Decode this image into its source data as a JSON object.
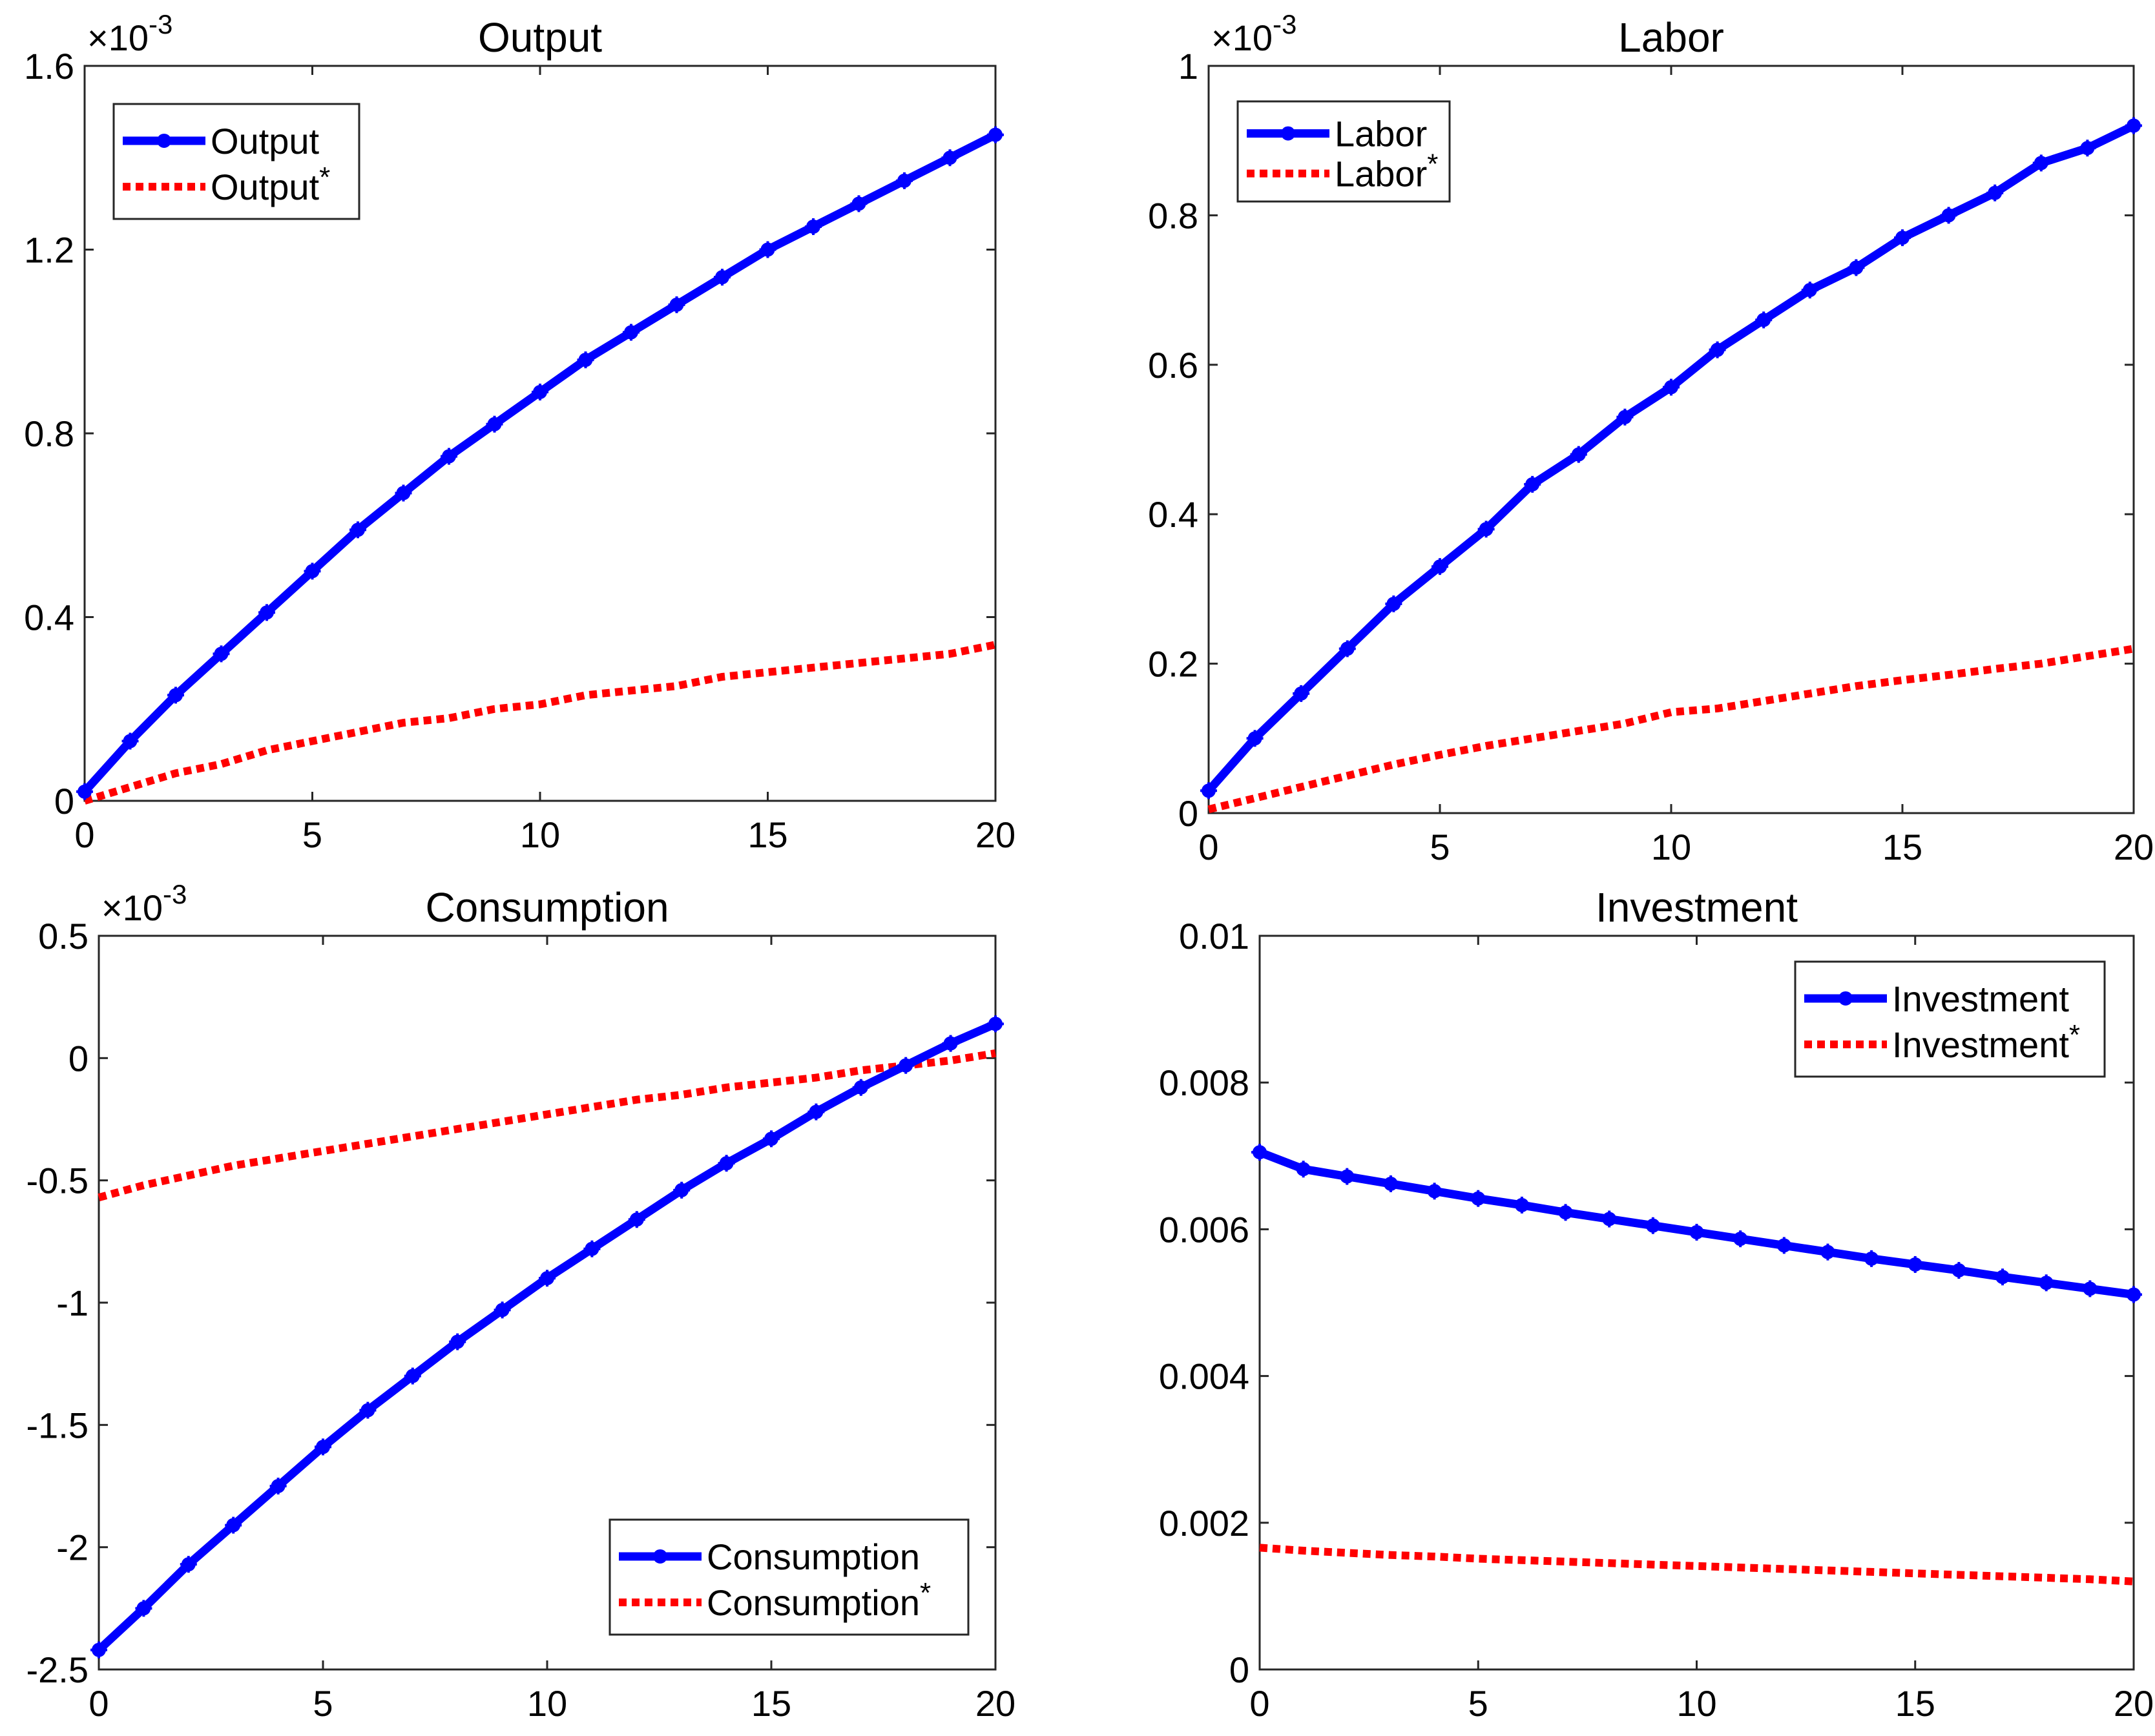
{
  "chart_data": [
    {
      "id": "output",
      "type": "line",
      "title": "Output",
      "xlabel": "",
      "ylabel": "",
      "exponent_label": "×10",
      "exponent_power": "-3",
      "xlim": [
        0,
        20
      ],
      "ylim": [
        0,
        1.6
      ],
      "xticks": [
        0,
        5,
        10,
        15,
        20
      ],
      "xtick_labels": [
        "0",
        "5",
        "10",
        "15",
        "20"
      ],
      "yticks": [
        0,
        0.4,
        0.8,
        1.2,
        1.6
      ],
      "ytick_labels": [
        "0",
        "0.4",
        "0.8",
        "1.2",
        "1.6"
      ],
      "legend_position": "top-left",
      "x": [
        0,
        1,
        2,
        3,
        4,
        5,
        6,
        7,
        8,
        9,
        10,
        11,
        12,
        13,
        14,
        15,
        16,
        17,
        18,
        19,
        20
      ],
      "series": [
        {
          "name": "Output",
          "superscript": "",
          "color": "#0000ff",
          "style": "solid-marker",
          "values": [
            0.02,
            0.13,
            0.23,
            0.32,
            0.41,
            0.5,
            0.59,
            0.67,
            0.75,
            0.82,
            0.89,
            0.96,
            1.02,
            1.08,
            1.14,
            1.2,
            1.25,
            1.3,
            1.35,
            1.4,
            1.45
          ]
        },
        {
          "name": "Output",
          "superscript": "*",
          "color": "#ff0000",
          "style": "dotted",
          "values": [
            0.0,
            0.03,
            0.06,
            0.08,
            0.11,
            0.13,
            0.15,
            0.17,
            0.18,
            0.2,
            0.21,
            0.23,
            0.24,
            0.25,
            0.27,
            0.28,
            0.29,
            0.3,
            0.31,
            0.32,
            0.34
          ]
        }
      ]
    },
    {
      "id": "labor",
      "type": "line",
      "title": "Labor",
      "xlabel": "",
      "ylabel": "",
      "exponent_label": "×10",
      "exponent_power": "-3",
      "xlim": [
        0,
        20
      ],
      "ylim": [
        0,
        1
      ],
      "xticks": [
        0,
        5,
        10,
        15,
        20
      ],
      "xtick_labels": [
        "0",
        "5",
        "10",
        "15",
        "20"
      ],
      "yticks": [
        0,
        0.2,
        0.4,
        0.6,
        0.8,
        1
      ],
      "ytick_labels": [
        "0",
        "0.2",
        "0.4",
        "0.6",
        "0.8",
        "1"
      ],
      "legend_position": "top-left",
      "x": [
        0,
        1,
        2,
        3,
        4,
        5,
        6,
        7,
        8,
        9,
        10,
        11,
        12,
        13,
        14,
        15,
        16,
        17,
        18,
        19,
        20
      ],
      "series": [
        {
          "name": "Labor",
          "superscript": "",
          "color": "#0000ff",
          "style": "solid-marker",
          "values": [
            0.03,
            0.1,
            0.16,
            0.22,
            0.28,
            0.33,
            0.38,
            0.44,
            0.48,
            0.53,
            0.57,
            0.62,
            0.66,
            0.7,
            0.73,
            0.77,
            0.8,
            0.83,
            0.87,
            0.89,
            0.92
          ]
        },
        {
          "name": "Labor",
          "superscript": "*",
          "color": "#ff0000",
          "style": "dotted",
          "values": [
            0.005,
            0.02,
            0.035,
            0.05,
            0.065,
            0.078,
            0.09,
            0.1,
            0.11,
            0.12,
            0.135,
            0.14,
            0.15,
            0.16,
            0.17,
            0.178,
            0.185,
            0.193,
            0.2,
            0.21,
            0.22
          ]
        }
      ]
    },
    {
      "id": "consumption",
      "type": "line",
      "title": "Consumption",
      "xlabel": "",
      "ylabel": "",
      "exponent_label": "×10",
      "exponent_power": "-3",
      "xlim": [
        0,
        20
      ],
      "ylim": [
        -2.5,
        0.5
      ],
      "xticks": [
        0,
        5,
        10,
        15,
        20
      ],
      "xtick_labels": [
        "0",
        "5",
        "10",
        "15",
        "20"
      ],
      "yticks": [
        -2.5,
        -2,
        -1.5,
        -1,
        -0.5,
        0,
        0.5
      ],
      "ytick_labels": [
        "-2.5",
        "-2",
        "-1.5",
        "-1",
        "-0.5",
        "0",
        "0.5"
      ],
      "legend_position": "bottom-right",
      "x": [
        0,
        1,
        2,
        3,
        4,
        5,
        6,
        7,
        8,
        9,
        10,
        11,
        12,
        13,
        14,
        15,
        16,
        17,
        18,
        19,
        20
      ],
      "series": [
        {
          "name": "Consumption",
          "superscript": "",
          "color": "#0000ff",
          "style": "solid-marker",
          "values": [
            -2.42,
            -2.25,
            -2.07,
            -1.91,
            -1.75,
            -1.59,
            -1.44,
            -1.3,
            -1.16,
            -1.03,
            -0.9,
            -0.78,
            -0.66,
            -0.54,
            -0.43,
            -0.33,
            -0.22,
            -0.12,
            -0.03,
            0.06,
            0.14
          ]
        },
        {
          "name": "Consumption",
          "superscript": "*",
          "color": "#ff0000",
          "style": "dotted",
          "values": [
            -0.57,
            -0.52,
            -0.48,
            -0.44,
            -0.41,
            -0.38,
            -0.35,
            -0.32,
            -0.29,
            -0.26,
            -0.23,
            -0.2,
            -0.17,
            -0.15,
            -0.12,
            -0.1,
            -0.08,
            -0.05,
            -0.03,
            -0.01,
            0.02
          ]
        }
      ]
    },
    {
      "id": "investment",
      "type": "line",
      "title": "Investment",
      "xlabel": "",
      "ylabel": "",
      "exponent_label": "",
      "exponent_power": "",
      "xlim": [
        0,
        20
      ],
      "ylim": [
        0,
        0.01
      ],
      "xticks": [
        0,
        5,
        10,
        15,
        20
      ],
      "xtick_labels": [
        "0",
        "5",
        "10",
        "15",
        "20"
      ],
      "yticks": [
        0,
        0.002,
        0.004,
        0.006,
        0.008,
        0.01
      ],
      "ytick_labels": [
        "0",
        "0.002",
        "0.004",
        "0.006",
        "0.008",
        "0.01"
      ],
      "legend_position": "top-right",
      "x": [
        0,
        1,
        2,
        3,
        4,
        5,
        6,
        7,
        8,
        9,
        10,
        11,
        12,
        13,
        14,
        15,
        16,
        17,
        18,
        19,
        20
      ],
      "series": [
        {
          "name": "Investment",
          "superscript": "",
          "color": "#0000ff",
          "style": "solid-marker",
          "values": [
            0.00705,
            0.00682,
            0.00672,
            0.00662,
            0.00652,
            0.00642,
            0.00633,
            0.00623,
            0.00614,
            0.00605,
            0.00596,
            0.00587,
            0.00578,
            0.00569,
            0.0056,
            0.00552,
            0.00544,
            0.00535,
            0.00527,
            0.00519,
            0.00511
          ]
        },
        {
          "name": "Investment",
          "superscript": "*",
          "color": "#ff0000",
          "style": "dotted",
          "values": [
            0.00166,
            0.00162,
            0.00159,
            0.00156,
            0.00154,
            0.00151,
            0.00149,
            0.00147,
            0.00145,
            0.00143,
            0.00141,
            0.00139,
            0.00137,
            0.00135,
            0.00133,
            0.00131,
            0.00129,
            0.00127,
            0.00125,
            0.00123,
            0.0012
          ]
        }
      ]
    }
  ]
}
